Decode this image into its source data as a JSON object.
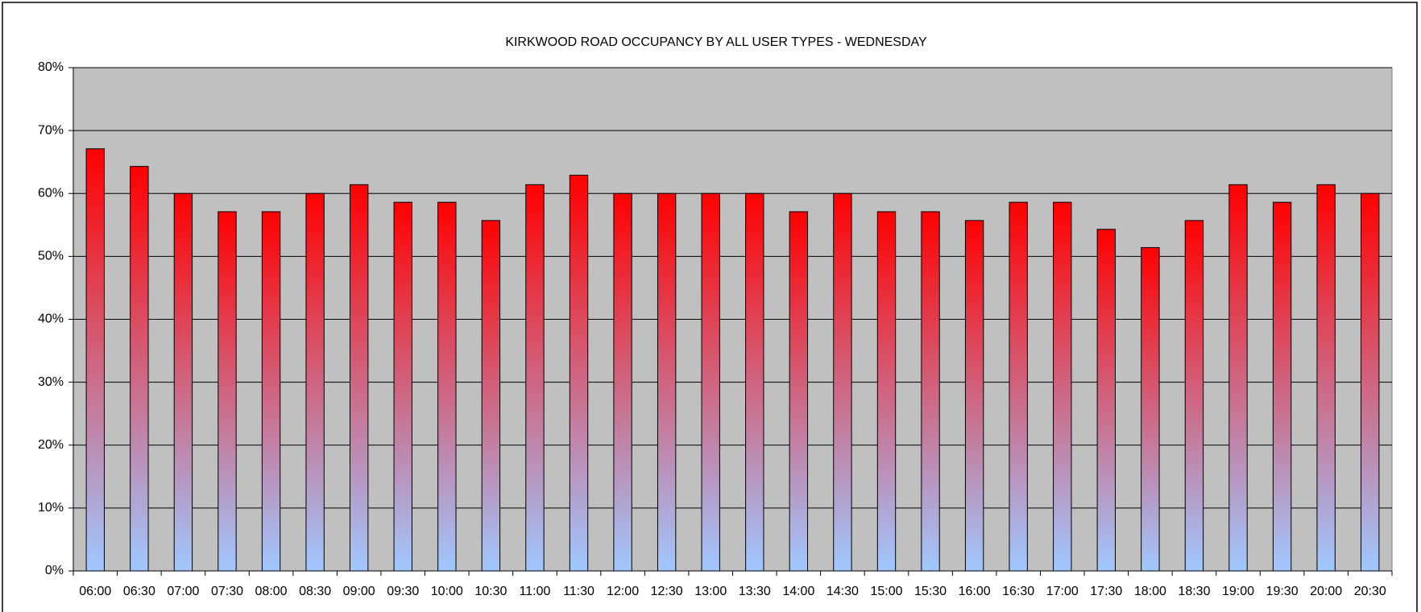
{
  "chart_data": {
    "type": "bar",
    "title": "KIRKWOOD ROAD OCCUPANCY BY ALL USER TYPES  - WEDNESDAY",
    "categories": [
      "06:00",
      "06:30",
      "07:00",
      "07:30",
      "08:00",
      "08:30",
      "09:00",
      "09:30",
      "10:00",
      "10:30",
      "11:00",
      "11:30",
      "12:00",
      "12:30",
      "13:00",
      "13:30",
      "14:00",
      "14:30",
      "15:00",
      "15:30",
      "16:00",
      "16:30",
      "17:00",
      "17:30",
      "18:00",
      "18:30",
      "19:00",
      "19:30",
      "20:00",
      "20:30"
    ],
    "values": [
      67.1,
      64.3,
      60,
      57.1,
      57.1,
      60,
      61.4,
      58.6,
      58.6,
      55.7,
      61.4,
      62.9,
      60,
      60,
      60,
      60,
      57.1,
      60,
      57.1,
      57.1,
      55.7,
      58.6,
      58.6,
      54.3,
      51.4,
      55.7,
      61.4,
      58.6,
      61.4,
      60
    ],
    "gradient": [
      "#ff0000",
      "#a0c8ff"
    ],
    "plot_background": "#c0c0c0",
    "ylim": [
      0,
      80
    ],
    "yticks": [
      {
        "value": 0,
        "label": "0%"
      },
      {
        "value": 10,
        "label": "10%"
      },
      {
        "value": 20,
        "label": "20%"
      },
      {
        "value": 30,
        "label": "30%"
      },
      {
        "value": 40,
        "label": "40%"
      },
      {
        "value": 50,
        "label": "50%"
      },
      {
        "value": 60,
        "label": "60%"
      },
      {
        "value": 70,
        "label": "70%"
      },
      {
        "value": 80,
        "label": "80%"
      }
    ],
    "grid": true
  }
}
